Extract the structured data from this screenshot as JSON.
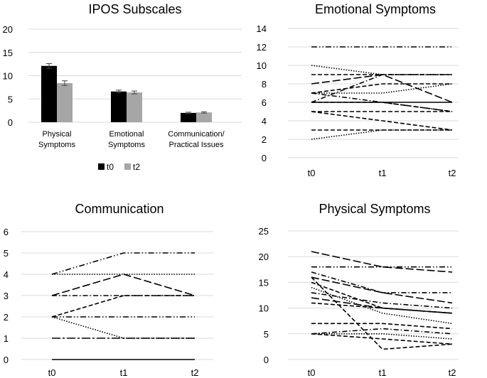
{
  "chart_data": [
    {
      "type": "bar",
      "title": "IPOS Subscales",
      "categories": [
        "Physical\nSymptoms",
        "Emotional\nSymptoms",
        "Communication/\nPractical Issues"
      ],
      "series": [
        {
          "name": "t0",
          "values": [
            12.1,
            6.6,
            2.0
          ],
          "errors": [
            0.5,
            0.3,
            0.15
          ],
          "color": "#000000"
        },
        {
          "name": "t2",
          "values": [
            8.4,
            6.4,
            2.1
          ],
          "errors": [
            0.5,
            0.3,
            0.15
          ],
          "color": "#a6a6a6"
        }
      ],
      "ylim": [
        0,
        20
      ],
      "yticks": [
        0,
        5,
        10,
        15,
        20
      ],
      "legend": "bottom"
    },
    {
      "type": "line",
      "title": "Emotional Symptoms",
      "x": [
        "t0",
        "t1",
        "t2"
      ],
      "ylim": [
        0,
        14
      ],
      "yticks": [
        0,
        2,
        4,
        6,
        8,
        10,
        12,
        14
      ],
      "series": [
        {
          "values": [
            12,
            12,
            12
          ],
          "dash": "dashdotdot"
        },
        {
          "values": [
            10,
            9,
            9
          ],
          "dash": "dotted"
        },
        {
          "values": [
            9,
            9,
            9
          ],
          "dash": "dashed"
        },
        {
          "values": [
            8,
            9,
            6
          ],
          "dash": "longdash"
        },
        {
          "values": [
            7,
            7,
            8
          ],
          "dash": "dotted"
        },
        {
          "values": [
            7,
            8,
            8
          ],
          "dash": "dashed"
        },
        {
          "values": [
            7,
            6,
            5
          ],
          "dash": "dashdot"
        },
        {
          "values": [
            6,
            9,
            9
          ],
          "dash": "dashdot"
        },
        {
          "values": [
            6,
            6,
            6
          ],
          "dash": "solid"
        },
        {
          "values": [
            6,
            6,
            5
          ],
          "dash": "dashed"
        },
        {
          "values": [
            5,
            5,
            5
          ],
          "dash": "dashed"
        },
        {
          "values": [
            5,
            4,
            3
          ],
          "dash": "dashed"
        },
        {
          "values": [
            3,
            3,
            3
          ],
          "dash": "dashed"
        },
        {
          "values": [
            2,
            3,
            3
          ],
          "dash": "dotted"
        }
      ]
    },
    {
      "type": "line",
      "title": "Communication",
      "x": [
        "t0",
        "t1",
        "t2"
      ],
      "ylim": [
        0,
        6
      ],
      "yticks": [
        0,
        1,
        2,
        3,
        4,
        5,
        6
      ],
      "series": [
        {
          "values": [
            4,
            5,
            5
          ],
          "dash": "dashdotdot"
        },
        {
          "values": [
            4,
            4,
            4
          ],
          "dash": "dotted"
        },
        {
          "values": [
            3,
            4,
            3
          ],
          "dash": "longdash"
        },
        {
          "values": [
            3,
            3,
            3
          ],
          "dash": "dashdot"
        },
        {
          "values": [
            2,
            3,
            3
          ],
          "dash": "dashed"
        },
        {
          "values": [
            2,
            2,
            2
          ],
          "dash": "dashdotdot"
        },
        {
          "values": [
            2,
            1,
            1
          ],
          "dash": "dotted"
        },
        {
          "values": [
            1,
            1,
            1
          ],
          "dash": "longdashdot"
        },
        {
          "values": [
            0,
            0,
            0
          ],
          "dash": "solid"
        }
      ]
    },
    {
      "type": "line",
      "title": "Physical Symptoms",
      "x": [
        "t0",
        "t1",
        "t2"
      ],
      "ylim": [
        0,
        25
      ],
      "yticks": [
        0,
        5,
        10,
        15,
        20,
        25
      ],
      "series": [
        {
          "values": [
            21,
            18,
            17
          ],
          "dash": "longdash"
        },
        {
          "values": [
            18,
            18,
            18
          ],
          "dash": "dashdotdot"
        },
        {
          "values": [
            17,
            13,
            13
          ],
          "dash": "dashdot"
        },
        {
          "values": [
            16,
            13,
            11
          ],
          "dash": "longdash"
        },
        {
          "values": [
            15,
            10,
            9
          ],
          "dash": "dashed"
        },
        {
          "values": [
            14,
            9,
            7
          ],
          "dash": "dotted"
        },
        {
          "values": [
            13,
            11,
            10
          ],
          "dash": "dashdot"
        },
        {
          "values": [
            12,
            10,
            9
          ],
          "dash": "longdash"
        },
        {
          "values": [
            11,
            10,
            9
          ],
          "dash": "dashed"
        },
        {
          "values": [
            16,
            2,
            3
          ],
          "dash": "dashed"
        },
        {
          "values": [
            7,
            7,
            6
          ],
          "dash": "dashed"
        },
        {
          "values": [
            5,
            6,
            5
          ],
          "dash": "dashdot"
        },
        {
          "values": [
            5,
            5,
            4
          ],
          "dash": "dotted"
        },
        {
          "values": [
            5,
            4,
            3
          ],
          "dash": "dashed"
        }
      ]
    }
  ]
}
